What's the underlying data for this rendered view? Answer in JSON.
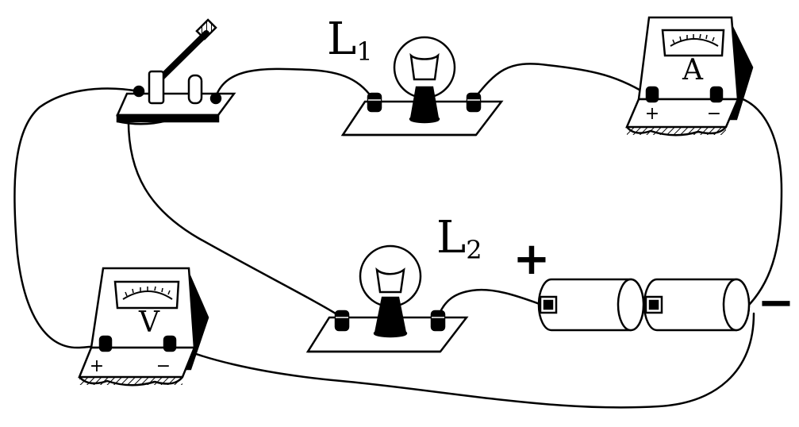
{
  "labels": {
    "lamp1": {
      "main": "L",
      "sub": "1"
    },
    "lamp2": {
      "main": "L",
      "sub": "2"
    },
    "ammeter_letter": "A",
    "voltmeter_letter": "V",
    "ammeter_plus": "+",
    "ammeter_minus": "−",
    "voltmeter_plus": "+",
    "voltmeter_minus": "−",
    "battery_plus": "+",
    "battery_minus": "−"
  },
  "icons": [
    "switch-icon",
    "lamp-icon",
    "ammeter-icon",
    "voltmeter-icon",
    "battery-cell-icon"
  ]
}
